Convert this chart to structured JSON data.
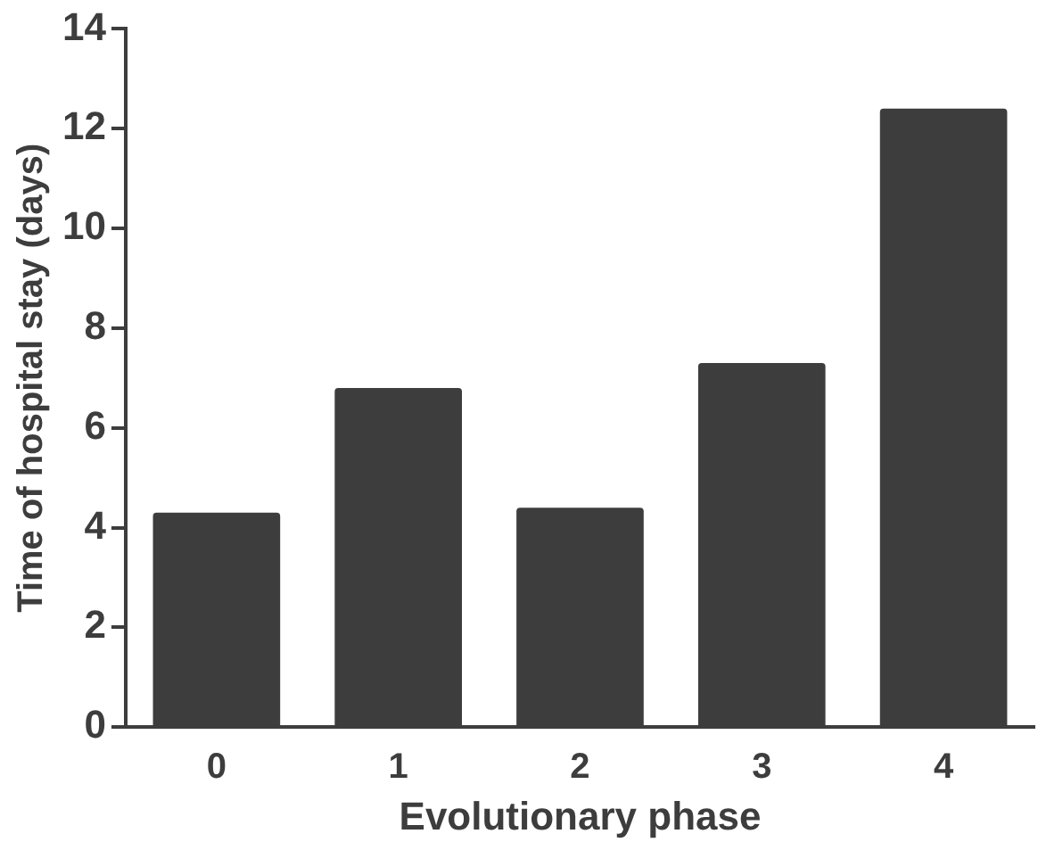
{
  "chart_data": {
    "type": "bar",
    "xlabel": "Evolutionary phase",
    "ylabel": "Time of hospital stay (days)",
    "categories": [
      "0",
      "1",
      "2",
      "3",
      "4"
    ],
    "values": [
      4.3,
      6.8,
      4.4,
      7.3,
      12.4
    ],
    "color": "#3d3d3d",
    "ylim": [
      0,
      14
    ],
    "yticks": [
      0,
      2,
      4,
      6,
      8,
      10,
      12,
      14
    ],
    "grid": false,
    "legend": false
  }
}
